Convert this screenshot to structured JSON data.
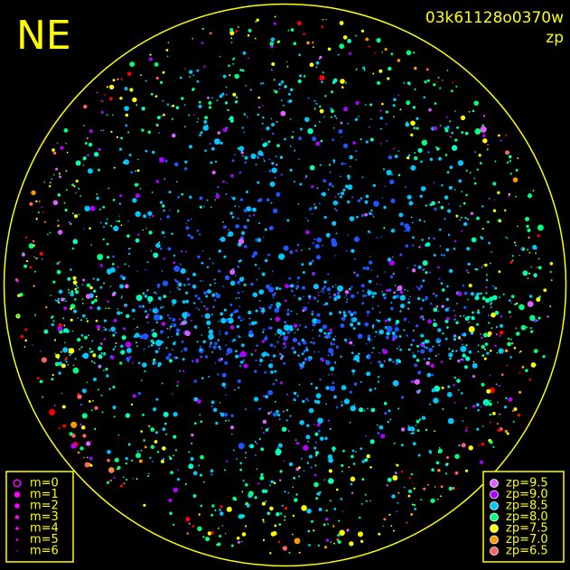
{
  "header": {
    "direction": "NE",
    "image_id": "03k61128o0370w",
    "color_key": "zp"
  },
  "magnitude_legend": {
    "items": [
      "m=0",
      "m=1",
      "m=2",
      "m=3",
      "m=4",
      "m=5",
      "m=6"
    ],
    "color": "#ff00ff"
  },
  "zp_legend": {
    "items": [
      {
        "label": "zp=9.5",
        "color": "#e060ff"
      },
      {
        "label": "zp=9.0",
        "color": "#b000ff"
      },
      {
        "label": "zp=8.5",
        "color": "#00c8ff"
      },
      {
        "label": "zp=8.0",
        "color": "#00ff80"
      },
      {
        "label": "zp=7.5",
        "color": "#ffff00"
      },
      {
        "label": "zp=7.0",
        "color": "#ff9900"
      },
      {
        "label": "zp=6.5",
        "color": "#ff6060"
      }
    ]
  },
  "frame_color": "#ffff00"
}
